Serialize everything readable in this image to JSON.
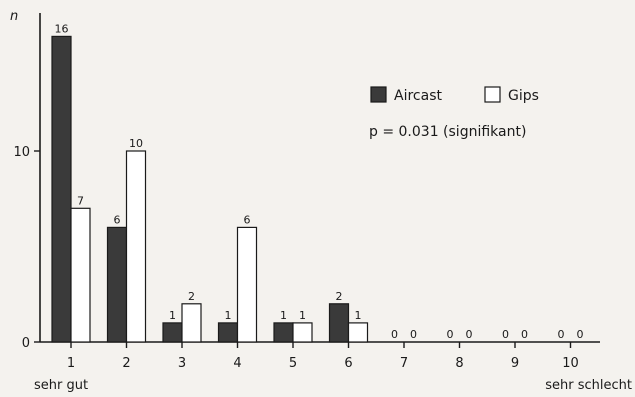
{
  "chart_data": {
    "type": "bar",
    "categories": [
      "1",
      "2",
      "3",
      "4",
      "5",
      "6",
      "7",
      "8",
      "9",
      "10"
    ],
    "series": [
      {
        "name": "Aircast",
        "values": [
          16,
          6,
          1,
          1,
          1,
          2,
          0,
          0,
          0,
          0
        ],
        "color": "#3a3a3a"
      },
      {
        "name": "Gips",
        "values": [
          7,
          10,
          2,
          6,
          1,
          1,
          0,
          0,
          0,
          0
        ],
        "color": "#ffffff"
      }
    ],
    "ylabel": "n",
    "yticks": [
      0,
      10
    ],
    "ylim": [
      0,
      17
    ],
    "x_start_label": "sehr gut",
    "x_end_label": "sehr schlecht",
    "annotation": "p = 0.031 (signifikant)",
    "legend_position": "top-right",
    "grid": false
  }
}
